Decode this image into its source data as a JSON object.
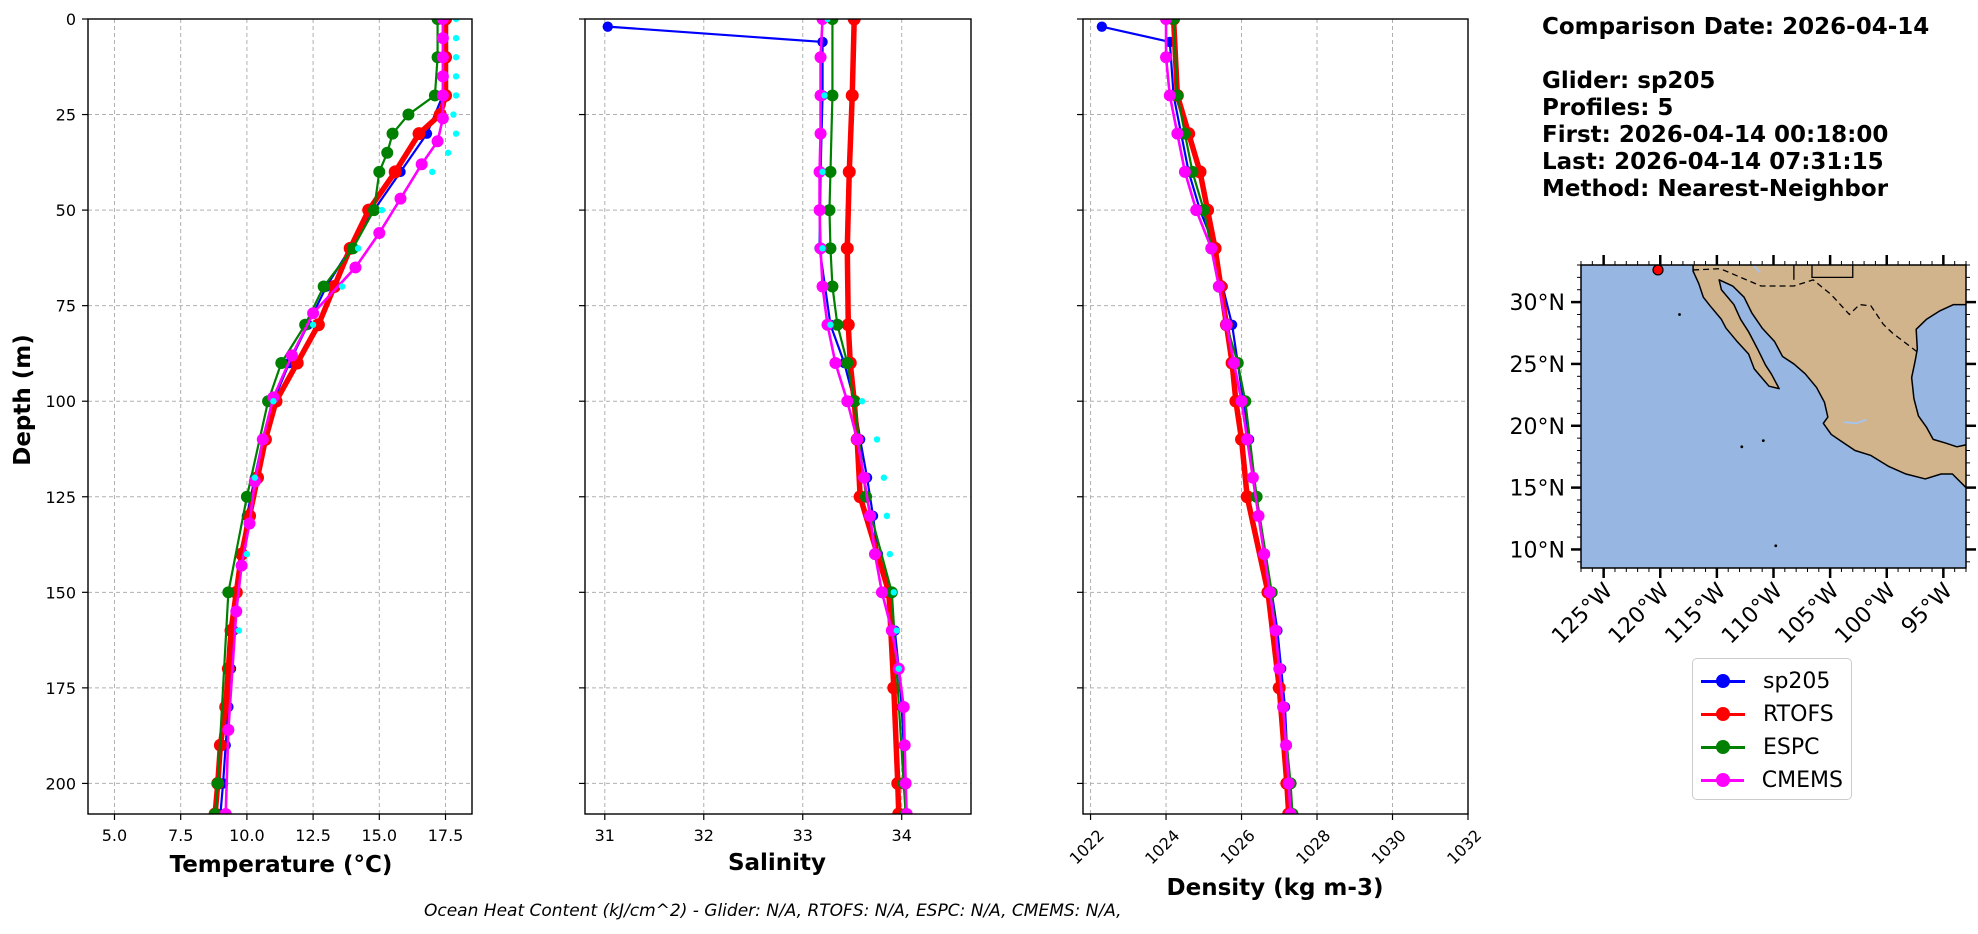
{
  "info": {
    "comparison_date": "Comparison Date: 2026-04-14",
    "glider": "Glider: sp205",
    "profiles": "Profiles: 5",
    "first": "First: 2026-04-14 00:18:00",
    "last": "Last: 2026-04-14 07:31:15",
    "method": "Method: Nearest-Neighbor"
  },
  "footnote": "Ocean Heat Content (kJ/cm^2) - Glider: N/A,  RTOFS: N/A,  ESPC: N/A,  CMEMS: N/A,",
  "colors": {
    "sp205": "#0000ff",
    "RTOFS": "#ff0000",
    "ESPC": "#008000",
    "CMEMS": "#ff00ff",
    "glider_scatter": "#00ffff",
    "land": "#d2b48c",
    "ocean": "#97b6e1"
  },
  "legend": [
    {
      "label": "sp205",
      "color": "#0000ff"
    },
    {
      "label": "RTOFS",
      "color": "#ff0000"
    },
    {
      "label": "ESPC",
      "color": "#008000"
    },
    {
      "label": "CMEMS",
      "color": "#ff00ff"
    }
  ],
  "chart_data": [
    {
      "type": "line",
      "xlabel": "Temperature (°C)",
      "ylabel": "Depth (m)",
      "xlim": [
        4.0,
        18.5
      ],
      "ylim": [
        208,
        0
      ],
      "xticks": [
        "5.0",
        "7.5",
        "10.0",
        "12.5",
        "15.0",
        "17.5"
      ],
      "yticks": [
        "0",
        "25",
        "50",
        "75",
        "100",
        "125",
        "150",
        "175",
        "200"
      ],
      "grid": true,
      "series": [
        {
          "name": "sp205",
          "depth": [
            0,
            10,
            20,
            30,
            40,
            50,
            60,
            70,
            80,
            90,
            100,
            110,
            120,
            130,
            140,
            150,
            160,
            170,
            180,
            190,
            200,
            208
          ],
          "values": [
            17.5,
            17.5,
            17.4,
            16.8,
            15.8,
            14.8,
            13.9,
            13.0,
            12.3,
            11.6,
            11.0,
            10.6,
            10.3,
            10.0,
            9.8,
            9.6,
            9.5,
            9.4,
            9.3,
            9.2,
            9.1,
            9.0
          ]
        },
        {
          "name": "RTOFS",
          "depth": [
            0,
            10,
            20,
            25,
            30,
            40,
            50,
            60,
            70,
            80,
            90,
            100,
            110,
            120,
            130,
            140,
            150,
            160,
            170,
            180,
            190,
            200,
            208
          ],
          "values": [
            17.5,
            17.5,
            17.5,
            17.3,
            16.5,
            15.6,
            14.6,
            13.9,
            13.3,
            12.7,
            11.9,
            11.1,
            10.7,
            10.4,
            10.1,
            9.8,
            9.6,
            9.4,
            9.3,
            9.2,
            9.0,
            8.9,
            8.8
          ]
        },
        {
          "name": "ESPC",
          "depth": [
            0,
            10,
            20,
            25,
            30,
            35,
            40,
            50,
            60,
            70,
            80,
            90,
            100,
            125,
            150,
            200,
            208
          ],
          "values": [
            17.2,
            17.2,
            17.1,
            16.1,
            15.5,
            15.3,
            15.0,
            14.8,
            14.0,
            12.9,
            12.2,
            11.3,
            10.8,
            10.0,
            9.3,
            8.9,
            8.8
          ]
        },
        {
          "name": "CMEMS",
          "depth": [
            0,
            5,
            10,
            15,
            20,
            26,
            32,
            38,
            47,
            56,
            65,
            77,
            88,
            99,
            110,
            121,
            132,
            143,
            155,
            186,
            208
          ],
          "values": [
            17.4,
            17.4,
            17.4,
            17.4,
            17.4,
            17.4,
            17.2,
            16.6,
            15.8,
            15.0,
            14.1,
            12.5,
            11.7,
            11.0,
            10.6,
            10.3,
            10.1,
            9.8,
            9.6,
            9.3,
            9.2
          ]
        },
        {
          "name": "sp205 (all profiles)",
          "depth": [
            0,
            5,
            10,
            15,
            20,
            25,
            30,
            35,
            40,
            50,
            60,
            70,
            80,
            100,
            120,
            140,
            160
          ],
          "values": [
            17.9,
            17.9,
            17.9,
            17.9,
            17.9,
            17.8,
            17.9,
            17.6,
            17.0,
            15.1,
            14.2,
            13.6,
            12.5,
            11.0,
            10.3,
            10.0,
            9.7
          ]
        }
      ]
    },
    {
      "type": "line",
      "xlabel": "Salinity",
      "xlim": [
        30.8,
        34.7
      ],
      "ylim": [
        208,
        0
      ],
      "xticks": [
        "31",
        "32",
        "33",
        "34"
      ],
      "grid": true,
      "series": [
        {
          "name": "sp205",
          "depth": [
            2,
            6,
            20,
            40,
            60,
            80,
            90,
            100,
            110,
            120,
            130,
            140,
            150,
            160,
            170,
            180,
            190,
            200,
            208
          ],
          "values": [
            31.03,
            33.2,
            33.2,
            33.18,
            33.17,
            33.28,
            33.42,
            33.52,
            33.58,
            33.65,
            33.71,
            33.76,
            33.85,
            33.93,
            33.97,
            34.0,
            34.02,
            34.03,
            34.04
          ]
        },
        {
          "name": "RTOFS",
          "depth": [
            0,
            20,
            40,
            60,
            80,
            90,
            100,
            110,
            125,
            150,
            175,
            200,
            208
          ],
          "values": [
            33.52,
            33.5,
            33.47,
            33.45,
            33.46,
            33.48,
            33.52,
            33.55,
            33.58,
            33.87,
            33.92,
            33.96,
            33.97
          ]
        },
        {
          "name": "ESPC",
          "depth": [
            0,
            20,
            40,
            50,
            60,
            70,
            80,
            90,
            100,
            125,
            150,
            200,
            208
          ],
          "values": [
            33.3,
            33.3,
            33.28,
            33.27,
            33.28,
            33.3,
            33.35,
            33.45,
            33.52,
            33.64,
            33.9,
            34.02,
            34.04
          ]
        },
        {
          "name": "CMEMS",
          "depth": [
            0,
            10,
            20,
            30,
            40,
            50,
            60,
            70,
            80,
            90,
            100,
            110,
            120,
            130,
            140,
            150,
            160,
            170,
            180,
            190,
            200,
            208
          ],
          "values": [
            33.2,
            33.18,
            33.18,
            33.18,
            33.17,
            33.17,
            33.18,
            33.2,
            33.25,
            33.33,
            33.45,
            33.55,
            33.62,
            33.68,
            33.73,
            33.8,
            33.9,
            33.97,
            34.02,
            34.03,
            34.04,
            34.05
          ]
        },
        {
          "name": "sp205 (all profiles)",
          "depth": [
            0,
            20,
            40,
            60,
            80,
            100,
            110,
            120,
            130,
            140,
            150,
            160,
            170
          ],
          "values": [
            33.25,
            33.22,
            33.2,
            33.2,
            33.28,
            33.6,
            33.75,
            33.82,
            33.85,
            33.88,
            33.92,
            33.95,
            33.97
          ]
        }
      ]
    },
    {
      "type": "line",
      "xlabel": "Density (kg m-3)",
      "xlim": [
        1021.8,
        1032.0
      ],
      "ylim": [
        208,
        0
      ],
      "xticks": [
        "1022",
        "1024",
        "1026",
        "1028",
        "1030",
        "1032"
      ],
      "grid": true,
      "series": [
        {
          "name": "sp205",
          "depth": [
            2,
            6,
            20,
            30,
            40,
            50,
            60,
            70,
            80,
            90,
            100,
            110,
            120,
            130,
            140,
            150,
            160,
            170,
            180,
            190,
            200,
            208
          ],
          "values": [
            1022.3,
            1024.1,
            1024.2,
            1024.4,
            1024.6,
            1024.9,
            1025.3,
            1025.5,
            1025.75,
            1025.9,
            1026.05,
            1026.2,
            1026.3,
            1026.45,
            1026.6,
            1026.8,
            1026.95,
            1027.05,
            1027.15,
            1027.2,
            1027.28,
            1027.35
          ]
        },
        {
          "name": "RTOFS",
          "depth": [
            0,
            20,
            30,
            40,
            50,
            60,
            70,
            80,
            90,
            100,
            110,
            125,
            150,
            175,
            200,
            208
          ],
          "values": [
            1024.2,
            1024.3,
            1024.6,
            1024.9,
            1025.1,
            1025.3,
            1025.45,
            1025.6,
            1025.75,
            1025.85,
            1026.0,
            1026.15,
            1026.7,
            1027.0,
            1027.2,
            1027.25
          ]
        },
        {
          "name": "ESPC",
          "depth": [
            0,
            20,
            30,
            40,
            50,
            60,
            70,
            80,
            90,
            100,
            125,
            150,
            200,
            208
          ],
          "values": [
            1024.2,
            1024.3,
            1024.5,
            1024.7,
            1025.0,
            1025.2,
            1025.4,
            1025.6,
            1025.9,
            1026.1,
            1026.4,
            1026.8,
            1027.3,
            1027.35
          ]
        },
        {
          "name": "CMEMS",
          "depth": [
            0,
            10,
            20,
            30,
            40,
            50,
            60,
            70,
            80,
            90,
            100,
            110,
            120,
            130,
            140,
            150,
            160,
            170,
            180,
            190,
            200,
            208
          ],
          "values": [
            1024.0,
            1024.0,
            1024.1,
            1024.3,
            1024.5,
            1024.8,
            1025.2,
            1025.4,
            1025.6,
            1025.8,
            1026.0,
            1026.15,
            1026.3,
            1026.45,
            1026.6,
            1026.75,
            1026.9,
            1027.0,
            1027.1,
            1027.18,
            1027.25,
            1027.3
          ]
        }
      ]
    },
    {
      "type": "map",
      "lon_range": [
        -127,
        -93
      ],
      "lat_range": [
        8.5,
        33
      ],
      "lon_ticks": [
        "125°W",
        "120°W",
        "115°W",
        "110°W",
        "105°W",
        "100°W",
        "95°W"
      ],
      "lat_ticks": [
        "30°N",
        "25°N",
        "20°N",
        "15°N",
        "10°N"
      ],
      "glider_position": {
        "lon": -120.2,
        "lat": 32.6
      }
    }
  ]
}
